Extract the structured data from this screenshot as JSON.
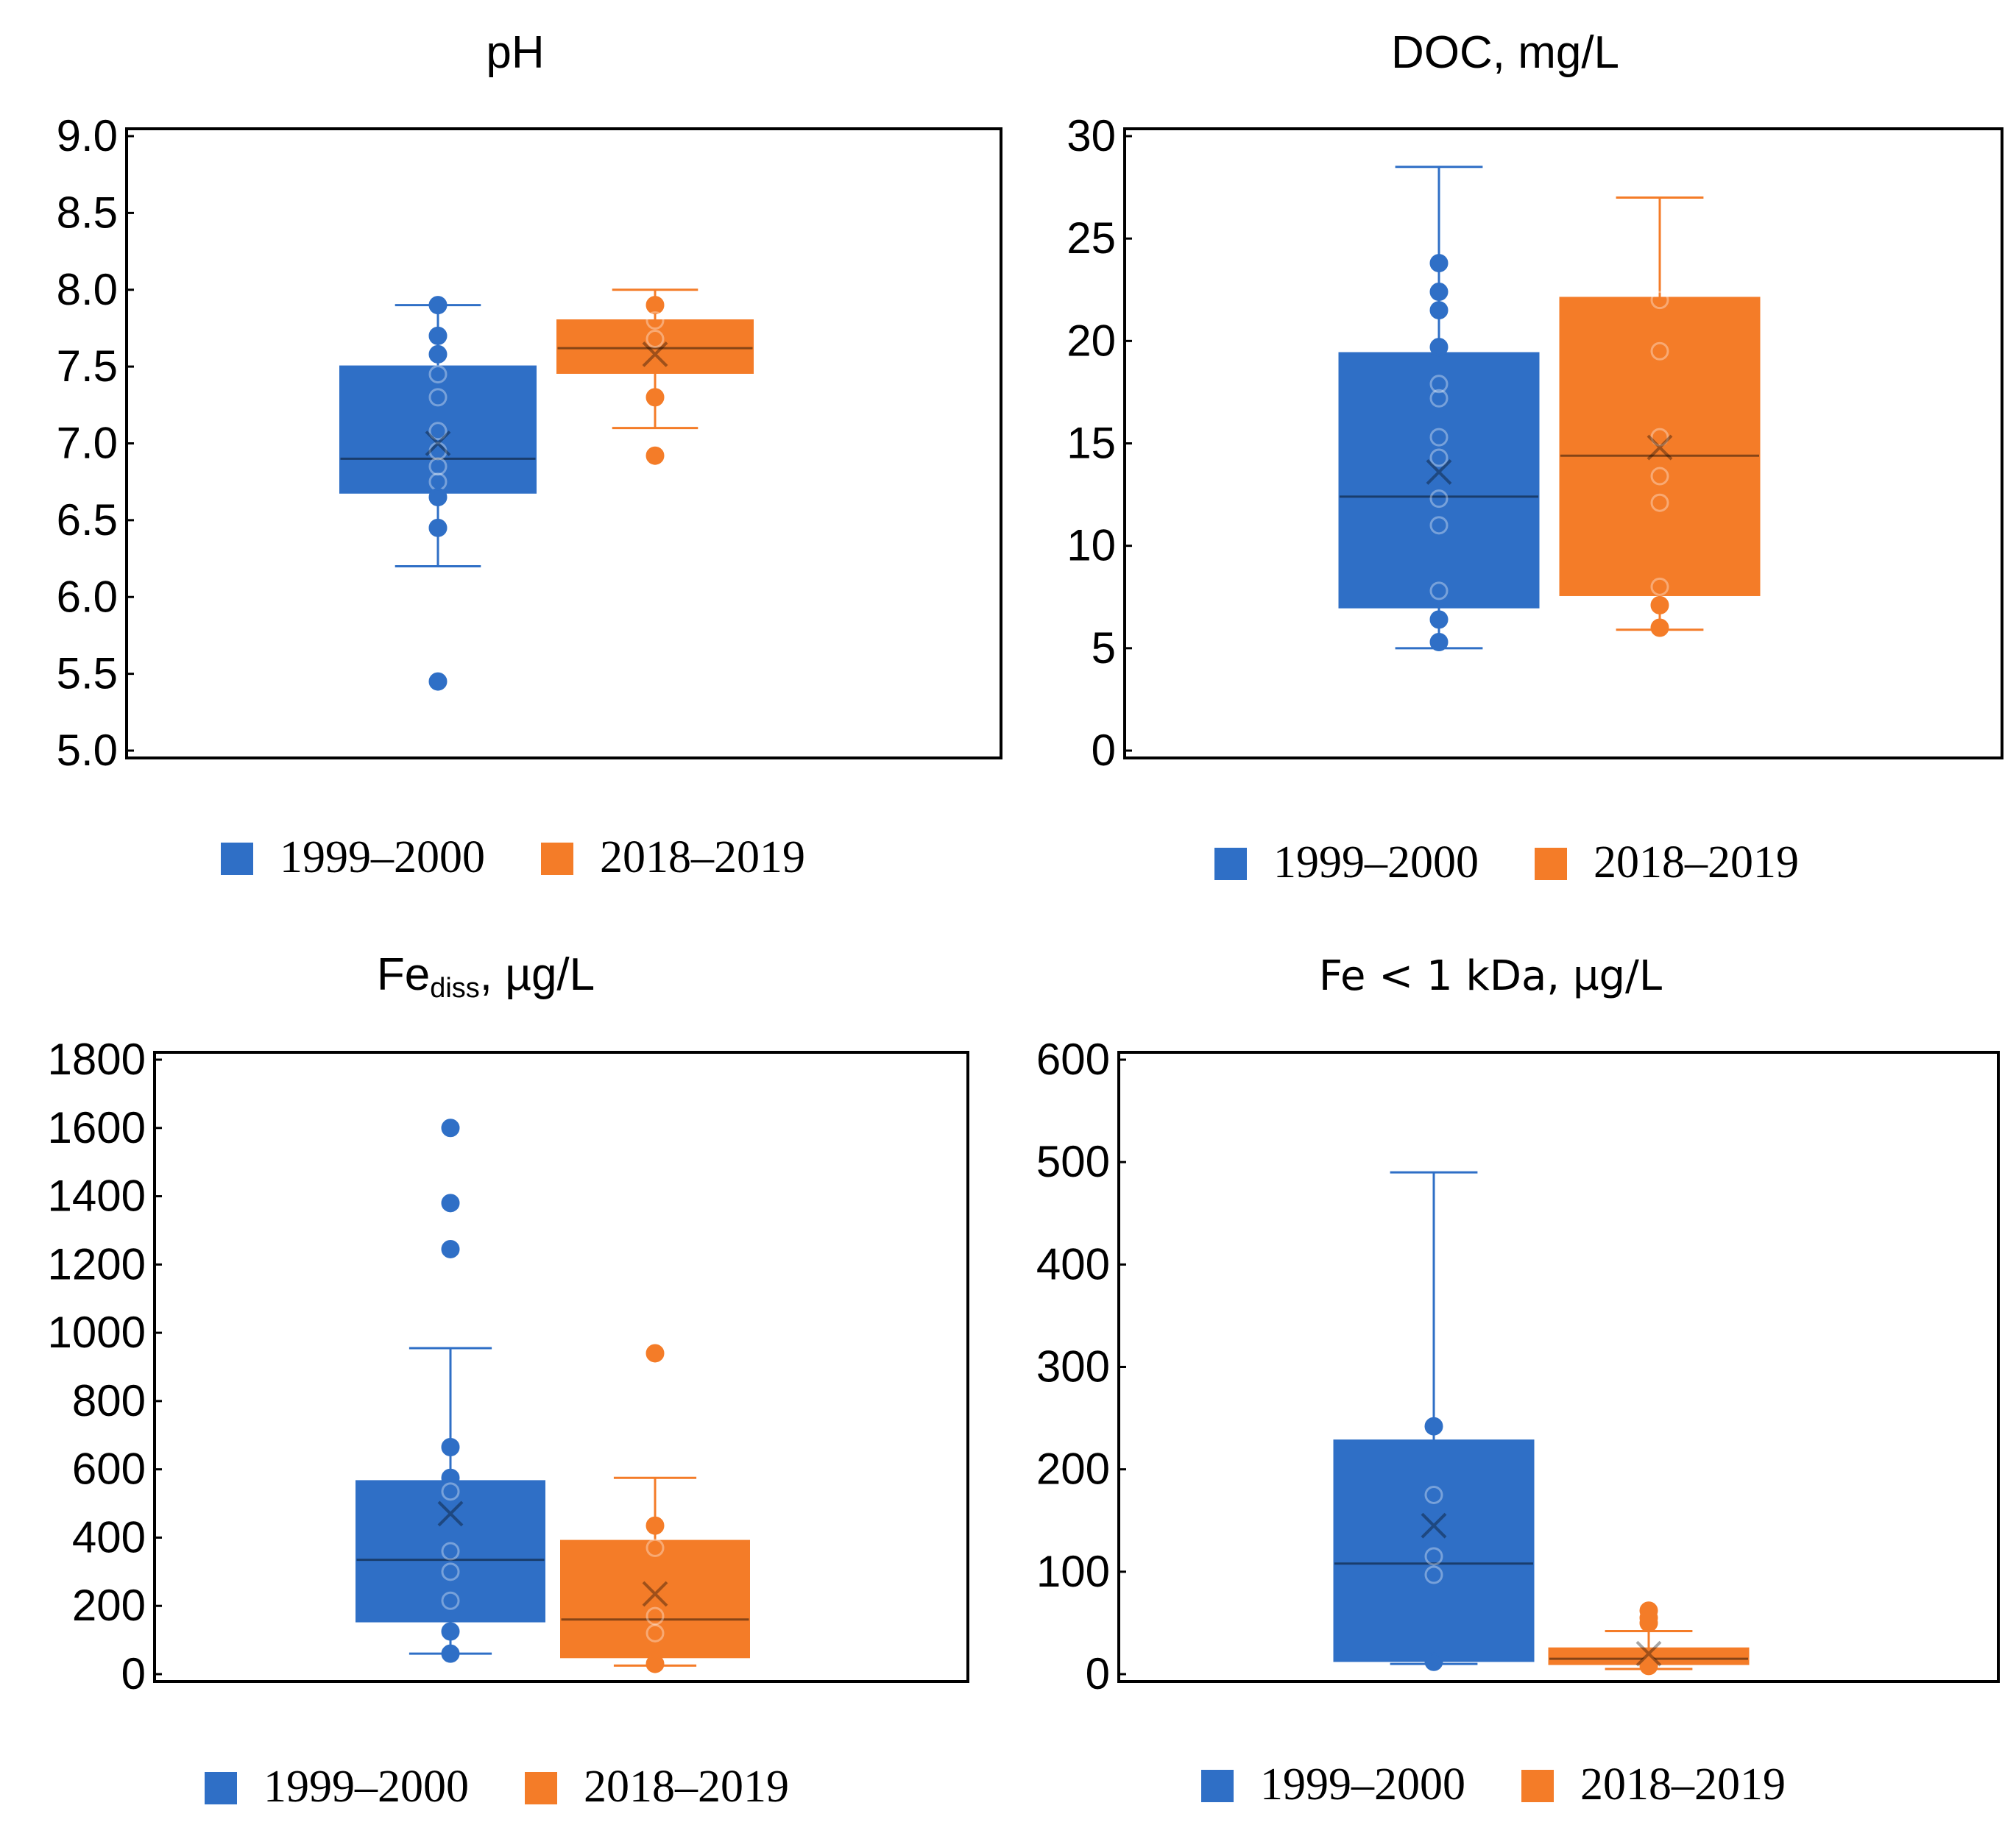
{
  "chart_data": [
    {
      "type": "box",
      "title": "pH",
      "ylim": [
        5.0,
        9.0
      ],
      "yticks": [
        "5.0",
        "5.5",
        "6.0",
        "6.5",
        "7.0",
        "7.5",
        "8.0",
        "8.5",
        "9.0"
      ],
      "legend": [
        "1999–2000",
        "2018–2019"
      ],
      "series": [
        {
          "name": "1999–2000",
          "color": "#2f6fc6",
          "whisker_low": 6.2,
          "q1": 6.68,
          "median": 6.9,
          "q3": 7.5,
          "whisker_high": 7.9,
          "mean": 7.0,
          "points": [
            7.9,
            7.7,
            7.58,
            7.45,
            7.3,
            7.08,
            6.95,
            6.85,
            6.75,
            6.65,
            6.45,
            5.45
          ],
          "outliers": [
            5.45
          ]
        },
        {
          "name": "2018–2019",
          "color": "#f47c28",
          "whisker_low": 7.1,
          "q1": 7.46,
          "median": 7.62,
          "q3": 7.8,
          "whisker_high": 8.0,
          "mean": 7.58,
          "points": [
            7.9,
            7.8,
            7.68,
            7.3,
            6.92
          ],
          "outliers": [
            6.92
          ]
        }
      ]
    },
    {
      "type": "box",
      "title": "DOC, mg/L",
      "ylim": [
        0,
        30
      ],
      "yticks": [
        "0",
        "5",
        "10",
        "15",
        "20",
        "25",
        "30"
      ],
      "legend": [
        "1999–2000",
        "2018–2019"
      ],
      "series": [
        {
          "name": "1999–2000",
          "color": "#2f6fc6",
          "whisker_low": 5.0,
          "q1": 7.0,
          "median": 12.4,
          "q3": 19.4,
          "whisker_high": 28.5,
          "mean": 13.6,
          "points": [
            23.8,
            22.4,
            21.5,
            19.7,
            17.9,
            17.2,
            15.3,
            14.3,
            12.3,
            11.0,
            7.8,
            6.4,
            5.3
          ],
          "outliers": []
        },
        {
          "name": "2018–2019",
          "color": "#f47c28",
          "whisker_low": 5.9,
          "q1": 7.6,
          "median": 14.4,
          "q3": 22.1,
          "whisker_high": 27.0,
          "mean": 14.8,
          "points": [
            22.0,
            19.5,
            15.3,
            13.4,
            12.1,
            8.0,
            7.1,
            6.0
          ],
          "outliers": []
        }
      ]
    },
    {
      "type": "box",
      "title": "Fe",
      "title_sub": "diss",
      "title_suffix": ", µg/L",
      "ylim": [
        0,
        1800
      ],
      "yticks": [
        "0",
        "200",
        "400",
        "600",
        "800",
        "1000",
        "1200",
        "1400",
        "1600",
        "1800"
      ],
      "legend": [
        "1999–2000",
        "2018–2019"
      ],
      "series": [
        {
          "name": "1999–2000",
          "color": "#2f6fc6",
          "whisker_low": 60,
          "q1": 155,
          "median": 335,
          "q3": 565,
          "whisker_high": 955,
          "mean": 470,
          "points": [
            665,
            575,
            535,
            360,
            300,
            215,
            125,
            60,
            1600,
            1380,
            1245
          ],
          "outliers": [
            1600,
            1380,
            1245
          ]
        },
        {
          "name": "2018–2019",
          "color": "#f47c28",
          "whisker_low": 25,
          "q1": 50,
          "median": 160,
          "q3": 390,
          "whisker_high": 575,
          "mean": 235,
          "points": [
            435,
            370,
            170,
            120,
            30,
            940
          ],
          "outliers": [
            940
          ]
        }
      ]
    },
    {
      "type": "box",
      "title": "Fe < 1 kDa, µg/L",
      "ylim": [
        0,
        600
      ],
      "yticks": [
        "0",
        "100",
        "200",
        "300",
        "400",
        "500",
        "600"
      ],
      "legend": [
        "1999–2000",
        "2018–2019"
      ],
      "series": [
        {
          "name": "1999–2000",
          "color": "#2f6fc6",
          "whisker_low": 10,
          "q1": 13,
          "median": 108,
          "q3": 228,
          "whisker_high": 490,
          "mean": 145,
          "points": [
            242,
            175,
            115,
            97,
            12
          ],
          "outliers": []
        },
        {
          "name": "2018–2019",
          "color": "#f47c28",
          "whisker_low": 5,
          "q1": 10,
          "median": 15,
          "q3": 25,
          "whisker_high": 42,
          "mean": 20,
          "points": [
            62,
            55,
            50,
            8
          ],
          "outliers": []
        }
      ]
    }
  ]
}
